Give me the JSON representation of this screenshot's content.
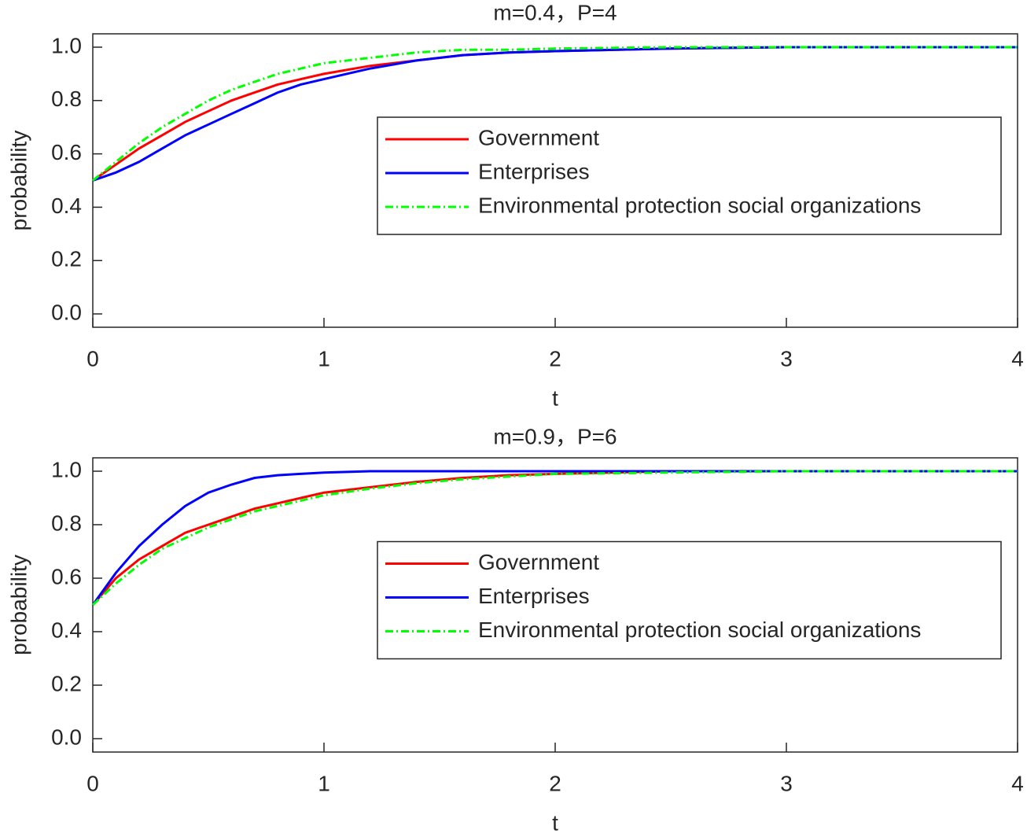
{
  "chart_data": [
    {
      "type": "line",
      "title": "m=0.4，P=4",
      "xlabel": "t",
      "ylabel": "probability",
      "x": [
        0,
        0.1,
        0.2,
        0.3,
        0.4,
        0.5,
        0.6,
        0.7,
        0.8,
        0.9,
        1.0,
        1.2,
        1.4,
        1.6,
        1.8,
        2.0,
        2.5,
        3.0,
        3.5,
        4.0
      ],
      "series": [
        {
          "name": "Government",
          "color": "#ff0000",
          "dash": "solid",
          "values": [
            0.5,
            0.56,
            0.62,
            0.67,
            0.72,
            0.76,
            0.8,
            0.83,
            0.86,
            0.88,
            0.9,
            0.93,
            0.95,
            0.97,
            0.98,
            0.985,
            0.995,
            1.0,
            1.0,
            1.0
          ]
        },
        {
          "name": "Enterprises",
          "color": "#0000ff",
          "dash": "solid",
          "values": [
            0.5,
            0.53,
            0.57,
            0.62,
            0.67,
            0.71,
            0.75,
            0.79,
            0.83,
            0.86,
            0.88,
            0.92,
            0.95,
            0.97,
            0.98,
            0.985,
            0.995,
            1.0,
            1.0,
            1.0
          ]
        },
        {
          "name": "Environmental protection social organizations",
          "color": "#00ff00",
          "dash": "dashdot",
          "values": [
            0.5,
            0.57,
            0.64,
            0.7,
            0.75,
            0.8,
            0.84,
            0.87,
            0.9,
            0.92,
            0.94,
            0.96,
            0.98,
            0.99,
            0.99,
            0.995,
            1.0,
            1.0,
            1.0,
            1.0
          ]
        }
      ],
      "xlim": [
        0,
        4
      ],
      "xticks": [
        0,
        1,
        2,
        3,
        4
      ],
      "ylim": [
        -0.05,
        1.05
      ],
      "yticks": [
        {
          "value": 0,
          "label": "0.0"
        },
        0.2,
        0.4,
        0.6,
        0.8,
        {
          "value": 1,
          "label": "1.0"
        }
      ],
      "grid": false,
      "legend": "right"
    },
    {
      "type": "line",
      "title": "m=0.9，P=6",
      "xlabel": "t",
      "ylabel": "probability",
      "x": [
        0,
        0.1,
        0.2,
        0.3,
        0.4,
        0.5,
        0.6,
        0.7,
        0.8,
        0.9,
        1.0,
        1.2,
        1.4,
        1.6,
        1.8,
        2.0,
        2.5,
        3.0,
        3.5,
        4.0
      ],
      "series": [
        {
          "name": "Government",
          "color": "#ff0000",
          "dash": "solid",
          "values": [
            0.5,
            0.6,
            0.67,
            0.72,
            0.77,
            0.8,
            0.83,
            0.86,
            0.88,
            0.9,
            0.92,
            0.94,
            0.96,
            0.975,
            0.985,
            0.99,
            1.0,
            1.0,
            1.0,
            1.0
          ]
        },
        {
          "name": "Enterprises",
          "color": "#0000ff",
          "dash": "solid",
          "values": [
            0.5,
            0.62,
            0.72,
            0.8,
            0.87,
            0.92,
            0.95,
            0.975,
            0.985,
            0.99,
            0.995,
            1.0,
            1.0,
            1.0,
            1.0,
            1.0,
            1.0,
            1.0,
            1.0,
            1.0
          ]
        },
        {
          "name": "Environmental protection social organizations",
          "color": "#00ff00",
          "dash": "dashdot",
          "values": [
            0.5,
            0.58,
            0.65,
            0.71,
            0.75,
            0.79,
            0.82,
            0.85,
            0.87,
            0.89,
            0.91,
            0.935,
            0.955,
            0.97,
            0.98,
            0.99,
            0.995,
            1.0,
            1.0,
            1.0
          ]
        }
      ],
      "xlim": [
        0,
        4
      ],
      "xticks": [
        0,
        1,
        2,
        3,
        4
      ],
      "ylim": [
        -0.05,
        1.05
      ],
      "yticks": [
        {
          "value": 0,
          "label": "0.0"
        },
        0.2,
        0.4,
        0.6,
        0.8,
        {
          "value": 1,
          "label": "1.0"
        }
      ],
      "grid": false,
      "legend": "right"
    }
  ]
}
